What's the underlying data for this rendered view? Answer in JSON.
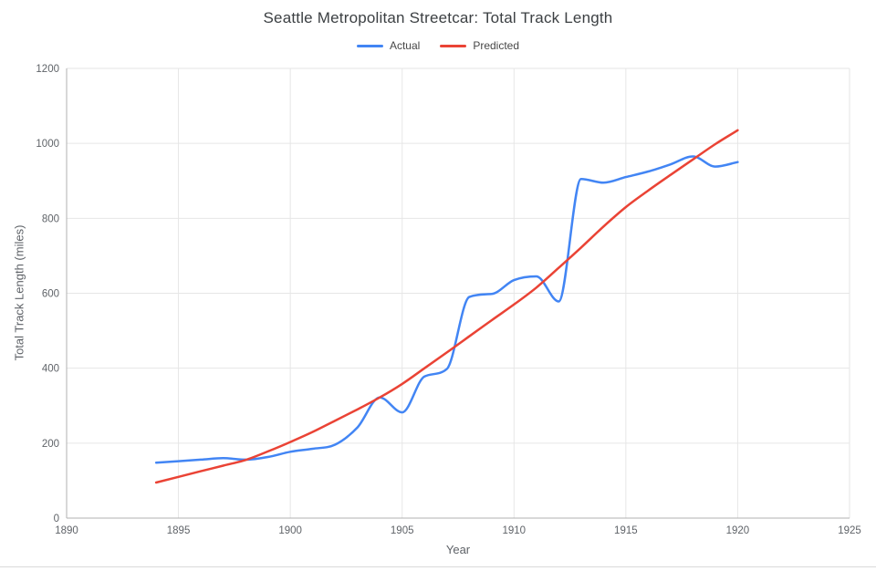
{
  "chart": {
    "title": "Seattle Metropolitan Streetcar: Total Track Length",
    "xlabel": "Year",
    "ylabel": "Total Track Length (miles)"
  },
  "chart_data": {
    "type": "line",
    "title": "Seattle Metropolitan Streetcar: Total Track Length",
    "xlabel": "Year",
    "ylabel": "Total Track Length (miles)",
    "xlim": [
      1890,
      1925
    ],
    "ylim": [
      0,
      1200
    ],
    "x_ticks": [
      1890,
      1895,
      1900,
      1905,
      1910,
      1915,
      1920,
      1925
    ],
    "y_ticks": [
      0,
      200,
      400,
      600,
      800,
      1000,
      1200
    ],
    "grid": true,
    "legend_position": "top",
    "smooth": true,
    "grid_color": "#e6e6e6",
    "axis_color": "#b0b0b0",
    "x": [
      1894,
      1895,
      1896,
      1897,
      1898,
      1899,
      1900,
      1901,
      1902,
      1903,
      1904,
      1905,
      1906,
      1907,
      1908,
      1909,
      1910,
      1911,
      1912,
      1913,
      1914,
      1915,
      1916,
      1917,
      1918,
      1919,
      1920
    ],
    "series": [
      {
        "name": "Actual",
        "color": "#4285f4",
        "values": [
          148,
          152,
          156,
          160,
          156,
          163,
          177,
          185,
          196,
          242,
          322,
          282,
          378,
          398,
          590,
          598,
          635,
          645,
          578,
          905,
          895,
          910,
          925,
          944,
          965,
          938,
          950
        ]
      },
      {
        "name": "Predicted",
        "color": "#ea4335",
        "values": [
          95,
          110,
          125,
          140,
          155,
          178,
          203,
          230,
          260,
          290,
          322,
          358,
          400,
          442,
          485,
          528,
          570,
          615,
          668,
          722,
          778,
          830,
          874,
          916,
          957,
          998,
          1035
        ]
      }
    ]
  }
}
